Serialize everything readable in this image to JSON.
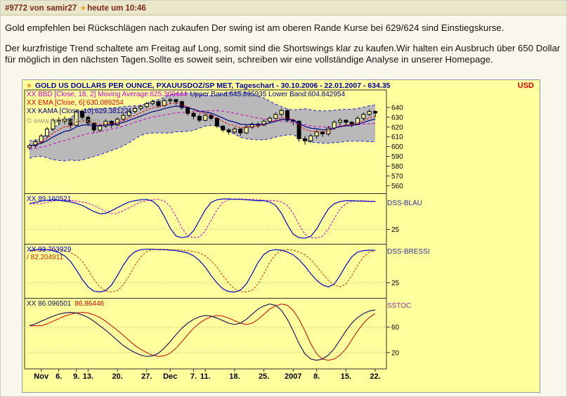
{
  "post_header": {
    "post_id": "#9772",
    "von": "von",
    "username": "samir27",
    "star": "★",
    "time": "heute um 10:46"
  },
  "post_body": {
    "para1": "Gold empfehlen bei Rückschlägen nach zukaufen Der swing ist am oberen Rande Kurse bei 629/624 sind Einstiegskurse.",
    "para2": "Der kurzfristige Trend schaltete am Freitag auf Long, somit sind die Shortswings klar zu kaufen.Wir halten ein Ausbruch über 650 Dollar für möglich in den nächsten Tagen.Sollte es soweit sein, schreiben wir eine vollständige Analyse in unserer Homepage."
  },
  "chart_header": {
    "star": "★",
    "title": "GOLD US DOLLARS PER OUNCE, PXAUUSDOZ/SP MET, Tageschart - 30.10.2006 - 22.01.2007 - 634.35",
    "currency": "USD",
    "bbd_magenta": "XX BBD [Close, 18, 2] Moving Average:625.369444",
    "bbd_navy": "Upper Band:645.895935 Lower Band:604.842954",
    "ema_label": "XX EMA [Close, 6]:630.089254",
    "kama_label": "XX KAMA [Close, 10]:629.381221",
    "watermark": "© www.tradesignal.com"
  },
  "panel_labels": {
    "dss_blau_value": "XX 89.160521",
    "dss_blau_name": "DSS-BLAU",
    "dss_bressi_value": "XX 93.763929",
    "dss_bressi_value2": "/ 82.204911",
    "dss_bressi_name": "DSS-BRESSI",
    "sstoc_value1": "XX 86.096501",
    "sstoc_value2": "86.86446",
    "sstoc_name": "SSTOC"
  },
  "chart_data": {
    "type": "candlestick",
    "title": "GOLD US DOLLARS PER OUNCE, PXAUUSDOZ/SP MET, Tageschart",
    "date_range": "30.10.2006 - 22.01.2007",
    "last_price": 634.35,
    "background": "#ffff9e",
    "band_fill": "#b9b9b9",
    "x_ticks": [
      {
        "label": "Nov",
        "bar": 3
      },
      {
        "label": "6.",
        "bar": 6
      },
      {
        "label": "9.",
        "bar": 9
      },
      {
        "label": "13.",
        "bar": 11
      },
      {
        "label": "20.",
        "bar": 16
      },
      {
        "label": "27.",
        "bar": 21
      },
      {
        "label": "Dec",
        "bar": 25
      },
      {
        "label": "7.",
        "bar": 29
      },
      {
        "label": "11.",
        "bar": 31
      },
      {
        "label": "18.",
        "bar": 36
      },
      {
        "label": "25.",
        "bar": 41
      },
      {
        "label": "2007",
        "bar": 46
      },
      {
        "label": "8.",
        "bar": 50
      },
      {
        "label": "15.",
        "bar": 55
      },
      {
        "label": "22.",
        "bar": 60
      }
    ],
    "panels": [
      {
        "name": "price",
        "type": "candlestick",
        "unit": "USD",
        "ylim": [
          553,
          658
        ],
        "yticks": [
          560,
          570,
          580,
          590,
          600,
          610,
          620,
          630,
          640
        ],
        "indicators": {
          "bollinger": {
            "source": "Close",
            "period": 18,
            "stddev": 2,
            "moving_average": 625.369444,
            "upper_band": 645.895935,
            "lower_band": 604.842954
          },
          "ema": {
            "source": "Close",
            "period": 6,
            "value": 630.089254
          },
          "kama": {
            "source": "Close",
            "period": 10,
            "value": 629.381221
          }
        },
        "ohlc": [
          [
            599,
            603,
            597,
            601
          ],
          [
            601,
            607,
            599,
            605
          ],
          [
            605,
            613,
            603,
            611
          ],
          [
            611,
            620,
            609,
            618
          ],
          [
            618,
            629,
            616,
            627
          ],
          [
            627,
            630,
            622,
            626
          ],
          [
            626,
            631,
            623,
            628
          ],
          [
            628,
            629,
            618,
            622
          ],
          [
            622,
            638,
            621,
            636
          ],
          [
            636,
            638,
            627,
            630
          ],
          [
            630,
            632,
            621,
            624
          ],
          [
            624,
            625,
            614,
            617
          ],
          [
            617,
            623,
            615,
            621
          ],
          [
            621,
            628,
            619,
            626
          ],
          [
            626,
            627,
            619,
            622
          ],
          [
            622,
            630,
            621,
            628
          ],
          [
            628,
            634,
            626,
            632
          ],
          [
            632,
            638,
            630,
            636
          ],
          [
            636,
            641,
            634,
            639
          ],
          [
            639,
            643,
            637,
            641
          ],
          [
            641,
            646,
            639,
            644
          ],
          [
            644,
            648,
            642,
            646
          ],
          [
            646,
            647,
            640,
            642
          ],
          [
            642,
            649,
            641,
            647
          ],
          [
            647,
            650,
            644,
            648
          ],
          [
            648,
            649,
            643,
            646
          ],
          [
            646,
            647,
            638,
            640
          ],
          [
            640,
            641,
            632,
            634
          ],
          [
            634,
            636,
            628,
            631
          ],
          [
            631,
            633,
            625,
            627
          ],
          [
            627,
            634,
            626,
            632
          ],
          [
            632,
            633,
            627,
            629
          ],
          [
            629,
            630,
            619,
            621
          ],
          [
            621,
            622,
            615,
            617
          ],
          [
            617,
            619,
            612,
            615
          ],
          [
            615,
            620,
            613,
            618
          ],
          [
            618,
            619,
            611,
            614
          ],
          [
            614,
            622,
            613,
            620
          ],
          [
            620,
            625,
            618,
            623
          ],
          [
            623,
            625,
            619,
            622
          ],
          [
            622,
            628,
            621,
            626
          ],
          [
            626,
            631,
            624,
            629
          ],
          [
            629,
            635,
            628,
            633
          ],
          [
            633,
            639,
            631,
            637
          ],
          [
            637,
            638,
            625,
            627
          ],
          [
            627,
            628,
            622,
            626
          ],
          [
            626,
            627,
            605,
            608
          ],
          [
            608,
            611,
            602,
            606
          ],
          [
            606,
            613,
            604,
            611
          ],
          [
            611,
            617,
            608,
            615
          ],
          [
            615,
            616,
            610,
            613
          ],
          [
            613,
            621,
            611,
            619
          ],
          [
            619,
            627,
            617,
            625
          ],
          [
            625,
            629,
            622,
            627
          ],
          [
            627,
            628,
            621,
            625
          ],
          [
            625,
            626,
            620,
            623
          ],
          [
            623,
            631,
            622,
            629
          ],
          [
            629,
            635,
            627,
            633
          ],
          [
            633,
            638,
            631,
            636
          ],
          [
            636,
            637,
            630,
            634.35
          ]
        ]
      },
      {
        "name": "DSS-BLAU",
        "type": "line",
        "ylim": [
          0,
          100
        ],
        "yticks": [
          25
        ],
        "last_values": [
          89.160521
        ],
        "colors": [
          "#0000cc",
          "#cc00cc"
        ],
        "signal_dashed": true,
        "values": [
          84,
          87,
          90,
          92,
          93,
          92,
          90,
          88,
          85,
          80,
          73,
          66,
          61,
          62,
          68,
          75,
          82,
          88,
          91,
          93,
          94,
          90,
          78,
          55,
          28,
          10,
          6,
          8,
          22,
          46,
          70,
          87,
          93,
          95,
          95,
          94,
          94,
          93,
          92,
          91,
          91,
          88,
          80,
          62,
          36,
          14,
          6,
          5,
          9,
          26,
          50,
          72,
          84,
          89,
          91,
          91,
          90,
          90,
          89,
          89.16
        ]
      },
      {
        "name": "DSS-BRESSI",
        "type": "line",
        "ylim": [
          0,
          100
        ],
        "yticks": [
          25
        ],
        "last_values": [
          93.763929,
          82.204911
        ],
        "colors": [
          "#0000cc",
          "#cc3300"
        ],
        "signal_dashed": true,
        "values": [
          93,
          95,
          96,
          95,
          93,
          89,
          82,
          70,
          52,
          32,
          16,
          7,
          5,
          8,
          20,
          40,
          62,
          80,
          91,
          95,
          96,
          96,
          95,
          95,
          94,
          93,
          91,
          88,
          82,
          72,
          58,
          40,
          24,
          12,
          6,
          5,
          9,
          22,
          44,
          68,
          85,
          93,
          95,
          94,
          90,
          84,
          74,
          60,
          44,
          30,
          20,
          16,
          22,
          40,
          62,
          80,
          90,
          93,
          94,
          93.76
        ]
      },
      {
        "name": "SSTOC",
        "type": "line",
        "ylim": [
          0,
          100
        ],
        "yticks": [
          60,
          20
        ],
        "last_values": [
          86.096501,
          86.86446
        ],
        "colors": [
          "#202060",
          "#cc0000"
        ],
        "signal_dashed": false,
        "values": [
          62,
          65,
          69,
          73,
          77,
          80,
          82,
          83,
          82,
          79,
          75,
          69,
          62,
          55,
          47,
          39,
          31,
          25,
          20,
          16,
          14,
          15,
          19,
          27,
          37,
          48,
          58,
          66,
          72,
          76,
          78,
          77,
          74,
          70,
          66,
          64,
          66,
          72,
          80,
          88,
          93,
          96,
          94,
          86,
          72,
          54,
          34,
          18,
          10,
          8,
          10,
          16,
          26,
          40,
          54,
          66,
          75,
          81,
          85,
          86.86
        ]
      }
    ]
  }
}
